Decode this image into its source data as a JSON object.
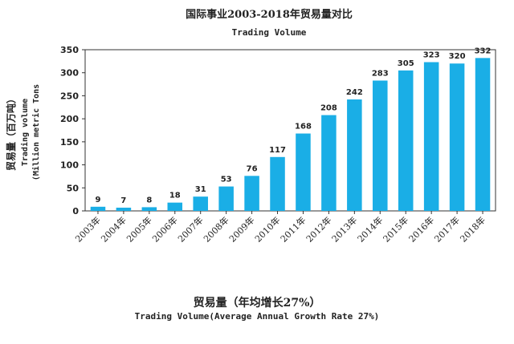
{
  "chart_data": {
    "type": "bar",
    "title": "国际事业2003-2018年贸易量对比",
    "subtitle": "Trading Volume",
    "ylabel_cn": "贸易量（百万吨）",
    "ylabel_en_1": "Trading volume",
    "ylabel_en_2": "(Million metric Tons",
    "categories": [
      "2003年",
      "2004年",
      "2005年",
      "2006年",
      "2007年",
      "2008年",
      "2009年",
      "2010年",
      "2011年",
      "2012年",
      "2013年",
      "2014年",
      "2015年",
      "2016年",
      "2017年",
      "2018年"
    ],
    "values": [
      9,
      7,
      8,
      18,
      31,
      53,
      76,
      117,
      168,
      208,
      242,
      283,
      305,
      323,
      320,
      332
    ],
    "ylim": [
      0,
      350
    ],
    "yticks": [
      0,
      50,
      100,
      150,
      200,
      250,
      300,
      350
    ],
    "grid": false,
    "bar_color": "#1aaee6"
  },
  "caption": {
    "cn": "贸易量（年均增长27%）",
    "en": "Trading Volume(Average Annual Growth Rate 27%)"
  }
}
